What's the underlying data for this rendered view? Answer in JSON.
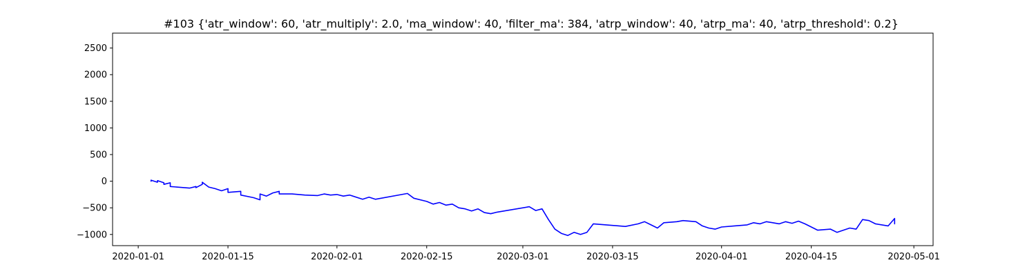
{
  "chart_data": {
    "type": "line",
    "title": "#103 {'atr_window': 60, 'atr_multiply': 2.0, 'ma_window': 40, 'filter_ma': 384, 'atrp_window': 40, 'atrp_ma': 40, 'atrp_threshold': 0.2}",
    "xlabel": "",
    "ylabel": "",
    "x_axis_type": "date",
    "xlim": [
      "2019-12-28",
      "2020-05-04"
    ],
    "ylim": [
      -1210,
      2780
    ],
    "x_ticks": [
      "2020-01-01",
      "2020-01-15",
      "2020-02-01",
      "2020-02-15",
      "2020-03-01",
      "2020-03-15",
      "2020-04-01",
      "2020-04-15",
      "2020-05-01"
    ],
    "y_ticks": [
      -1000,
      -500,
      0,
      500,
      1000,
      1500,
      2000,
      2500
    ],
    "grid": false,
    "legend": "none",
    "line_color": "#0000ff",
    "series": [
      {
        "name": "",
        "points": [
          [
            "2020-01-03",
            0
          ],
          [
            "2020-01-03",
            20
          ],
          [
            "2020-01-04",
            -20
          ],
          [
            "2020-01-04",
            10
          ],
          [
            "2020-01-05",
            -30
          ],
          [
            "2020-01-05",
            -60
          ],
          [
            "2020-01-06",
            -30
          ],
          [
            "2020-01-06",
            -100
          ],
          [
            "2020-01-09",
            -130
          ],
          [
            "2020-01-10",
            -100
          ],
          [
            "2020-01-10",
            -120
          ],
          [
            "2020-01-11",
            -60
          ],
          [
            "2020-01-11",
            -20
          ],
          [
            "2020-01-12",
            -110
          ],
          [
            "2020-01-13",
            -140
          ],
          [
            "2020-01-14",
            -180
          ],
          [
            "2020-01-15",
            -140
          ],
          [
            "2020-01-15",
            -210
          ],
          [
            "2020-01-17",
            -190
          ],
          [
            "2020-01-17",
            -260
          ],
          [
            "2020-01-19",
            -310
          ],
          [
            "2020-01-20",
            -350
          ],
          [
            "2020-01-20",
            -240
          ],
          [
            "2020-01-21",
            -280
          ],
          [
            "2020-01-22",
            -220
          ],
          [
            "2020-01-23",
            -190
          ],
          [
            "2020-01-23",
            -240
          ],
          [
            "2020-01-25",
            -240
          ],
          [
            "2020-01-27",
            -260
          ],
          [
            "2020-01-29",
            -270
          ],
          [
            "2020-01-30",
            -240
          ],
          [
            "2020-01-31",
            -260
          ],
          [
            "2020-02-01",
            -250
          ],
          [
            "2020-02-02",
            -280
          ],
          [
            "2020-02-03",
            -260
          ],
          [
            "2020-02-05",
            -340
          ],
          [
            "2020-02-06",
            -300
          ],
          [
            "2020-02-07",
            -340
          ],
          [
            "2020-02-12",
            -230
          ],
          [
            "2020-02-13",
            -320
          ],
          [
            "2020-02-15",
            -380
          ],
          [
            "2020-02-16",
            -430
          ],
          [
            "2020-02-17",
            -400
          ],
          [
            "2020-02-18",
            -450
          ],
          [
            "2020-02-19",
            -430
          ],
          [
            "2020-02-20",
            -500
          ],
          [
            "2020-02-21",
            -520
          ],
          [
            "2020-02-22",
            -560
          ],
          [
            "2020-02-23",
            -520
          ],
          [
            "2020-02-24",
            -590
          ],
          [
            "2020-02-25",
            -610
          ],
          [
            "2020-02-26",
            -580
          ],
          [
            "2020-03-02",
            -480
          ],
          [
            "2020-03-03",
            -550
          ],
          [
            "2020-03-04",
            -520
          ],
          [
            "2020-03-05",
            -720
          ],
          [
            "2020-03-06",
            -900
          ],
          [
            "2020-03-07",
            -980
          ],
          [
            "2020-03-08",
            -1020
          ],
          [
            "2020-03-09",
            -960
          ],
          [
            "2020-03-10",
            -1000
          ],
          [
            "2020-03-11",
            -960
          ],
          [
            "2020-03-12",
            -800
          ],
          [
            "2020-03-14",
            -820
          ],
          [
            "2020-03-17",
            -850
          ],
          [
            "2020-03-19",
            -800
          ],
          [
            "2020-03-20",
            -760
          ],
          [
            "2020-03-21",
            -820
          ],
          [
            "2020-03-22",
            -880
          ],
          [
            "2020-03-23",
            -780
          ],
          [
            "2020-03-25",
            -760
          ],
          [
            "2020-03-26",
            -740
          ],
          [
            "2020-03-28",
            -760
          ],
          [
            "2020-03-29",
            -840
          ],
          [
            "2020-03-30",
            -880
          ],
          [
            "2020-03-31",
            -900
          ],
          [
            "2020-04-01",
            -860
          ],
          [
            "2020-04-03",
            -840
          ],
          [
            "2020-04-05",
            -820
          ],
          [
            "2020-04-06",
            -780
          ],
          [
            "2020-04-07",
            -800
          ],
          [
            "2020-04-08",
            -760
          ],
          [
            "2020-04-09",
            -780
          ],
          [
            "2020-04-10",
            -800
          ],
          [
            "2020-04-11",
            -760
          ],
          [
            "2020-04-12",
            -790
          ],
          [
            "2020-04-13",
            -750
          ],
          [
            "2020-04-14",
            -800
          ],
          [
            "2020-04-15",
            -860
          ],
          [
            "2020-04-16",
            -920
          ],
          [
            "2020-04-18",
            -900
          ],
          [
            "2020-04-19",
            -960
          ],
          [
            "2020-04-21",
            -880
          ],
          [
            "2020-04-22",
            -900
          ],
          [
            "2020-04-23",
            -720
          ],
          [
            "2020-04-24",
            -740
          ],
          [
            "2020-04-25",
            -800
          ],
          [
            "2020-04-27",
            -840
          ],
          [
            "2020-04-28",
            -700
          ],
          [
            "2020-04-28",
            -800
          ]
        ]
      }
    ]
  }
}
